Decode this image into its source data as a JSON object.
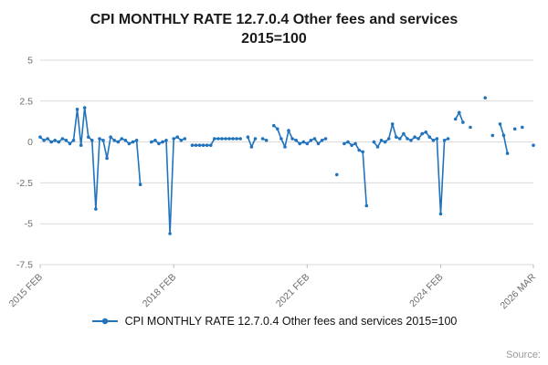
{
  "page": {
    "title": "CPI MONTHLY RATE 12.7.0.4 Other fees and services 2015=100",
    "source_label": "Source:"
  },
  "legend": {
    "label": "CPI MONTHLY RATE 12.7.0.4 Other fees and services 2015=100",
    "marker_color": "#2073bc"
  },
  "chart_data": {
    "type": "line",
    "title": "CPI MONTHLY RATE 12.7.0.4 Other fees and services 2015=100",
    "xlabel": "",
    "ylabel": "",
    "grid": true,
    "legend_position": "bottom",
    "line_color": "#2073bc",
    "marker": "circle",
    "ylim": [
      -7.5,
      5
    ],
    "yticks": [
      5,
      2.5,
      0,
      -2.5,
      -5,
      -7.5
    ],
    "xticks": [
      {
        "index": 0,
        "label": "2015 FEB"
      },
      {
        "index": 36,
        "label": "2018 FEB"
      },
      {
        "index": 72,
        "label": "2021 FEB"
      },
      {
        "index": 108,
        "label": "2024 FEB"
      },
      {
        "index": 133,
        "label": "2026 MAR"
      }
    ],
    "series": [
      {
        "name": "CPI MONTHLY RATE 12.7.0.4 Other fees and services 2015=100",
        "start": "2015-02",
        "frequency": "monthly",
        "values": [
          0.3,
          0.1,
          0.2,
          0.0,
          0.1,
          0.0,
          0.2,
          0.1,
          -0.1,
          0.1,
          2.0,
          -0.2,
          2.1,
          0.3,
          0.1,
          -4.1,
          0.2,
          0.1,
          -1.0,
          0.3,
          0.1,
          0.0,
          0.2,
          0.1,
          -0.1,
          0.0,
          0.1,
          -2.6,
          null,
          null,
          0.0,
          0.1,
          -0.1,
          0.0,
          0.1,
          -5.6,
          0.2,
          0.3,
          0.1,
          0.2,
          null,
          -0.2,
          -0.2,
          -0.2,
          -0.2,
          -0.2,
          -0.2,
          0.2,
          0.2,
          0.2,
          0.2,
          0.2,
          0.2,
          0.2,
          0.2,
          null,
          0.3,
          -0.3,
          0.2,
          null,
          0.2,
          0.1,
          null,
          1.0,
          0.8,
          0.2,
          -0.3,
          0.7,
          0.2,
          0.1,
          -0.1,
          0.0,
          -0.1,
          0.1,
          0.2,
          -0.1,
          0.1,
          0.2,
          null,
          null,
          -2.0,
          null,
          -0.1,
          0.0,
          -0.2,
          -0.1,
          -0.5,
          -0.6,
          -3.9,
          null,
          0.0,
          -0.3,
          0.1,
          0.0,
          0.2,
          1.1,
          0.3,
          0.2,
          0.5,
          0.2,
          0.1,
          0.3,
          0.2,
          0.5,
          0.6,
          0.3,
          0.1,
          0.2,
          -4.4,
          0.1,
          0.2,
          null,
          1.4,
          1.8,
          1.2,
          null,
          0.9,
          null,
          null,
          null,
          2.7,
          null,
          0.4,
          null,
          1.1,
          0.4,
          -0.7,
          null,
          0.8,
          null,
          0.9,
          null,
          null,
          -0.2
        ]
      }
    ]
  }
}
